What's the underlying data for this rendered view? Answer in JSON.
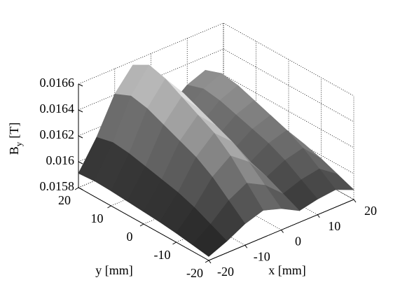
{
  "chart_data": {
    "type": "surface",
    "xlabel": "x [mm]",
    "ylabel": "y [mm]",
    "zlabel": {
      "base": "B",
      "subscript": "y",
      "rest": "[T]"
    },
    "x": [
      -20,
      -15,
      -10,
      -5,
      0,
      5,
      10,
      15,
      20
    ],
    "y": [
      -20,
      -15,
      -10,
      -5,
      0,
      5,
      10,
      15,
      20
    ],
    "z": [
      [
        0.01583,
        0.01589,
        0.015965,
        0.01601,
        0.015965,
        0.01589,
        0.01592,
        0.015935,
        0.015875
      ],
      [
        0.01585,
        0.01595,
        0.016075,
        0.01615,
        0.016075,
        0.01595,
        0.016,
        0.016025,
        0.015925
      ],
      [
        0.01587,
        0.01601,
        0.016185,
        0.01629,
        0.016185,
        0.01601,
        0.01608,
        0.016115,
        0.015975
      ],
      [
        0.015885,
        0.016055,
        0.016268,
        0.016395,
        0.016268,
        0.016055,
        0.01614,
        0.016183,
        0.016013
      ],
      [
        0.015895,
        0.016085,
        0.016323,
        0.016465,
        0.016323,
        0.016085,
        0.01618,
        0.016228,
        0.016038
      ],
      [
        0.015905,
        0.016115,
        0.016378,
        0.016535,
        0.016378,
        0.016115,
        0.01622,
        0.016273,
        0.016063
      ],
      [
        0.015915,
        0.016145,
        0.016433,
        0.016605,
        0.016433,
        0.016145,
        0.01626,
        0.016318,
        0.016088
      ],
      [
        0.01592,
        0.01616,
        0.01646,
        0.01664,
        0.01646,
        0.01616,
        0.01628,
        0.01634,
        0.0161
      ],
      [
        0.01591,
        0.01613,
        0.016405,
        0.01657,
        0.016405,
        0.01613,
        0.01624,
        0.016295,
        0.016075
      ]
    ],
    "xlim": [
      -20,
      20
    ],
    "ylim": [
      -20,
      20
    ],
    "zlim": [
      0.0158,
      0.0166
    ],
    "xticks": [
      -20,
      -10,
      0,
      10,
      20
    ],
    "yticks": [
      -20,
      -10,
      0,
      10,
      20
    ],
    "zticks": [
      0.0158,
      0.016,
      0.0162,
      0.0164,
      0.0166
    ],
    "grid": true,
    "colormap": "gray"
  }
}
